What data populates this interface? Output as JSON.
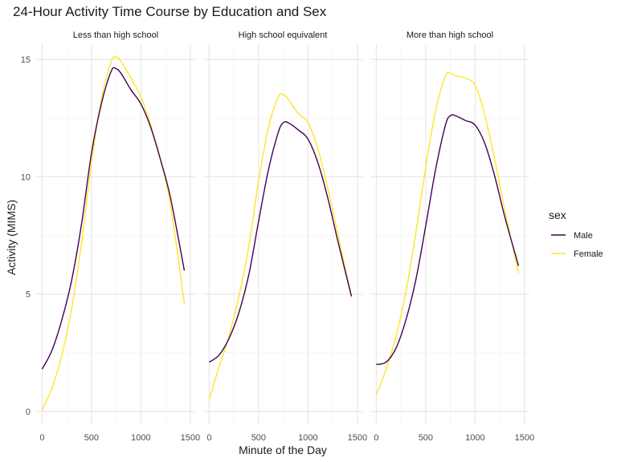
{
  "chart_data": {
    "type": "line",
    "title": "24-Hour Activity Time Course by Education and Sex",
    "xlabel": "Minute of the Day",
    "ylabel": "Activity (MIMS)",
    "xlim": [
      0,
      1440
    ],
    "ylim": [
      0,
      15.5
    ],
    "x_ticks": [
      0,
      500,
      1000,
      1500
    ],
    "x_tick_labels": [
      "0",
      "500",
      "1000",
      "1500"
    ],
    "y_ticks": [
      0,
      5,
      10,
      15
    ],
    "y_tick_labels": [
      "0",
      "5",
      "10",
      "15"
    ],
    "grid": true,
    "legend": {
      "title": "sex",
      "position": "right",
      "entries": [
        {
          "name": "Male",
          "color": "#440154"
        },
        {
          "name": "Female",
          "color": "#fde725"
        }
      ]
    },
    "panels": [
      {
        "strip": "Less than high school",
        "x": [
          0,
          100,
          200,
          300,
          400,
          500,
          600,
          700,
          750,
          800,
          900,
          1000,
          1100,
          1200,
          1300,
          1440
        ],
        "series": [
          {
            "name": "Male",
            "values": [
              1.8,
              2.6,
              3.9,
              5.6,
              8.0,
              11.0,
              13.1,
              14.5,
              14.6,
              14.4,
              13.7,
              13.1,
              12.1,
              10.7,
              9.1,
              6.0
            ]
          },
          {
            "name": "Female",
            "values": [
              0.05,
              1.0,
              2.4,
              4.4,
              7.2,
              10.6,
              13.3,
              14.9,
              15.1,
              14.9,
              14.2,
              13.4,
              12.2,
              10.7,
              8.8,
              4.6
            ]
          }
        ]
      },
      {
        "strip": "High school equivalent",
        "x": [
          0,
          100,
          200,
          300,
          400,
          500,
          600,
          700,
          750,
          800,
          900,
          1000,
          1100,
          1200,
          1300,
          1440
        ],
        "series": [
          {
            "name": "Male",
            "values": [
              2.1,
              2.4,
              3.1,
              4.2,
              5.8,
              8.1,
              10.3,
              11.9,
              12.3,
              12.3,
              12.0,
              11.6,
              10.6,
              9.1,
              7.3,
              4.9
            ]
          },
          {
            "name": "Female",
            "values": [
              0.5,
              1.9,
              3.2,
              4.9,
              7.0,
              9.8,
              12.1,
              13.4,
              13.5,
              13.3,
              12.7,
              12.3,
              11.2,
              9.5,
              7.6,
              4.9
            ]
          }
        ]
      },
      {
        "strip": "More than high school",
        "x": [
          0,
          100,
          200,
          300,
          400,
          500,
          600,
          700,
          750,
          800,
          900,
          1000,
          1100,
          1200,
          1300,
          1440
        ],
        "series": [
          {
            "name": "Male",
            "values": [
              2.0,
              2.1,
              2.7,
              3.9,
              5.6,
              7.9,
              10.3,
              12.2,
              12.6,
              12.6,
              12.4,
              12.2,
              11.4,
              10.0,
              8.3,
              6.2
            ]
          },
          {
            "name": "Female",
            "values": [
              0.7,
              1.8,
              3.2,
              5.1,
              7.6,
              10.4,
              12.8,
              14.3,
              14.4,
              14.3,
              14.2,
              13.9,
              12.6,
              10.7,
              8.6,
              5.9
            ]
          }
        ]
      }
    ]
  }
}
